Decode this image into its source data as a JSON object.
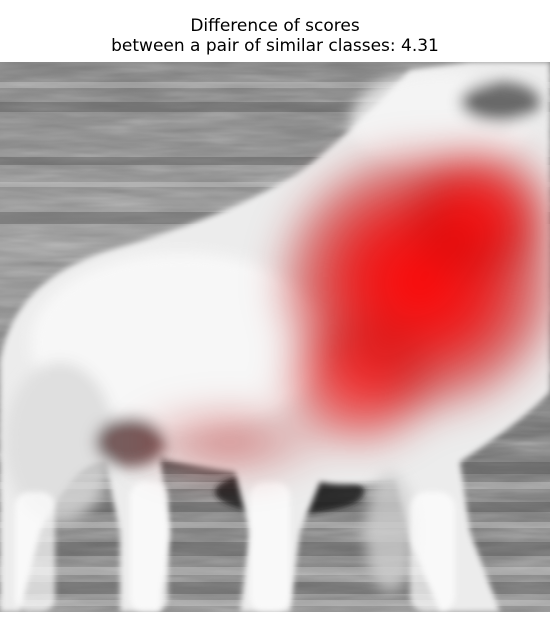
{
  "title": {
    "line1": "Difference of scores",
    "line2": "between a pair of similar classes: 4.31"
  },
  "image": {
    "subject": "white-dog-photo",
    "overlay": "red-saliency-heatmap",
    "colors": {
      "heat": "#ff0000",
      "fur": "#f2f2f2",
      "background": "#8a8a8a"
    }
  }
}
